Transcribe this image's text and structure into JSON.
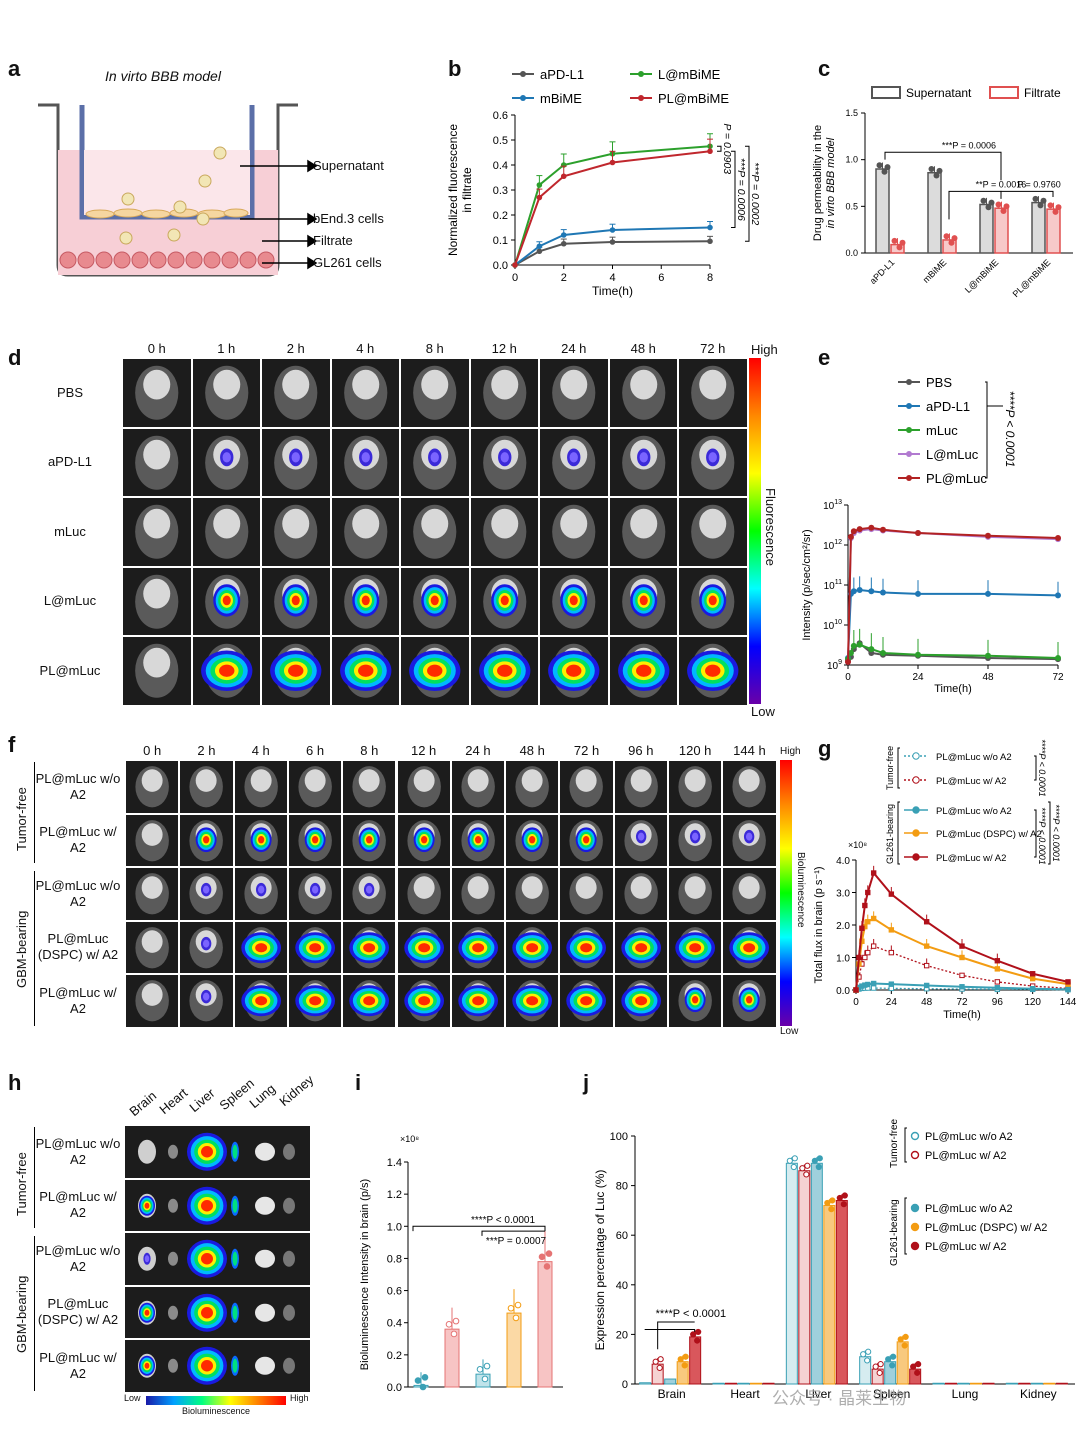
{
  "panels": {
    "a": {
      "letter": "a",
      "title": "In virto BBB model",
      "labels": [
        "Supernatant",
        "bEnd.3 cells",
        "Filtrate",
        "GL261 cells"
      ]
    },
    "b": {
      "letter": "b",
      "legend": [
        "aPD-L1",
        "L@mBiME",
        "mBiME",
        "PL@mBiME"
      ],
      "ylabel": "Normalized fluorescence in filtrate",
      "xlabel": "Time(h)",
      "stats": [
        "P = 0.0903",
        "***P = 0.0006",
        "***P = 0.0002"
      ]
    },
    "c": {
      "letter": "c",
      "legend": [
        "Supernatant",
        "Filtrate"
      ],
      "ylabel": "Drug permeability in the in virto BBB model",
      "stats": [
        "***P = 0.0006",
        "**P = 0.0016",
        "P = 0.9760"
      ]
    },
    "d": {
      "letter": "d",
      "times": [
        "0 h",
        "1 h",
        "2 h",
        "4 h",
        "8 h",
        "12 h",
        "24 h",
        "48 h",
        "72 h"
      ],
      "rows": [
        "PBS",
        "aPD-L1",
        "mLuc",
        "L@mLuc",
        "PL@mLuc"
      ],
      "scale_high": "High",
      "scale_low": "Low",
      "scale_label": "Fluorescence"
    },
    "e": {
      "letter": "e",
      "legend": [
        "PBS",
        "aPD-L1",
        "mLuc",
        "L@mLuc",
        "PL@mLuc"
      ],
      "stat": "****P < 0.0001",
      "ylabel": "Intensity (p/sec/cm²/sr)",
      "xlabel": "Time(h)"
    },
    "f": {
      "letter": "f",
      "times": [
        "0 h",
        "2 h",
        "4 h",
        "6 h",
        "8 h",
        "12 h",
        "24 h",
        "48 h",
        "72 h",
        "96 h",
        "120 h",
        "144 h"
      ],
      "groups": [
        "Tumor-free",
        "GBM-bearing"
      ],
      "rows": [
        "PL@mLuc w/o A2",
        "PL@mLuc w/ A2",
        "PL@mLuc w/o A2",
        "PL@mLuc (DSPC) w/ A2",
        "PL@mLuc w/ A2"
      ],
      "scale_high": "High",
      "scale_low": "Low",
      "scale_label": "Bioluminescence"
    },
    "g": {
      "letter": "g",
      "groups": [
        "Tumor-free",
        "GL261-bearing"
      ],
      "legend": [
        "PL@mLuc w/o A2",
        "PL@mLuc w/ A2",
        "PL@mLuc w/o A2",
        "PL@mLuc (DSPC) w/ A2",
        "PL@mLuc w/ A2"
      ],
      "stats": [
        "****P < 0.0001",
        "****P < 0.0001",
        "****P < 0.0001"
      ],
      "ylabel": "Total flux in brain (p s⁻¹)",
      "xlabel": "Time(h)",
      "multiplier": "×10⁸"
    },
    "h": {
      "letter": "h",
      "organs": [
        "Brain",
        "Heart",
        "Liver",
        "Spleen",
        "Lung",
        "Kidney"
      ],
      "groups": [
        "Tumor-free",
        "GBM-bearing"
      ],
      "rows": [
        "PL@mLuc w/o A2",
        "PL@mLuc w/ A2",
        "PL@mLuc w/o A2",
        "PL@mLuc (DSPC) w/ A2",
        "PL@mLuc w/ A2"
      ],
      "scale_low": "Low",
      "scale_high": "High",
      "scale_label": "Bioluminescence"
    },
    "i": {
      "letter": "i",
      "ylabel": "Bioluminescence Intensity in brain (p/s)",
      "multiplier": "×10⁸",
      "stats": [
        "****P < 0.0001",
        "***P = 0.0007"
      ]
    },
    "j": {
      "letter": "j",
      "ylabel": "Expression percentage of Luc (%)",
      "groups": [
        "Tumor-free",
        "GL261-bearing"
      ],
      "legend": [
        "PL@mLuc w/o A2",
        "PL@mLuc w/ A2",
        "PL@mLuc w/o A2",
        "PL@mLuc (DSPC) w/ A2",
        "PL@mLuc w/ A2"
      ],
      "stat": "****P < 0.0001"
    }
  },
  "watermark": "公众号 · 晶莱生物",
  "colors": {
    "gray": "#555555",
    "blue": "#1f77b4",
    "green": "#2ca02c",
    "red": "#b22222",
    "violet": "#b17ad0",
    "teal": "#3aa0b5",
    "orange": "#f39c12",
    "darkred": "#b0101a",
    "pink": "#e57373"
  },
  "chart_data": [
    {
      "id": "b",
      "type": "line",
      "xlabel": "Time(h)",
      "ylabel": "Normalized fluorescence in filtrate",
      "xlim": [
        0,
        8
      ],
      "ylim": [
        0,
        0.6
      ],
      "xticks": [
        0,
        2,
        4,
        6,
        8
      ],
      "yticks": [
        0.0,
        0.1,
        0.2,
        0.3,
        0.4,
        0.5,
        0.6
      ],
      "x": [
        0,
        1,
        2,
        4,
        8
      ],
      "series": [
        {
          "name": "aPD-L1",
          "color": "#555555",
          "values": [
            0,
            0.055,
            0.085,
            0.092,
            0.095
          ]
        },
        {
          "name": "mBiME",
          "color": "#1f77b4",
          "values": [
            0,
            0.075,
            0.12,
            0.14,
            0.15
          ]
        },
        {
          "name": "L@mBiME",
          "color": "#2ca02c",
          "values": [
            0,
            0.32,
            0.4,
            0.445,
            0.475
          ]
        },
        {
          "name": "PL@mBiME",
          "color": "#c0272d",
          "values": [
            0,
            0.27,
            0.355,
            0.41,
            0.455
          ]
        }
      ]
    },
    {
      "id": "c",
      "type": "bar",
      "ylabel": "Drug permeability in the in virto BBB model",
      "ylim": [
        0,
        1.5
      ],
      "yticks": [
        0.0,
        0.5,
        1.0,
        1.5
      ],
      "categories": [
        "aPD-L1",
        "mBiME",
        "L@mBiME",
        "PL@mBiME"
      ],
      "series": [
        {
          "name": "Supernatant",
          "values": [
            0.9,
            0.86,
            0.52,
            0.54
          ]
        },
        {
          "name": "Filtrate",
          "values": [
            0.09,
            0.14,
            0.48,
            0.47
          ]
        }
      ]
    },
    {
      "id": "e",
      "type": "line",
      "xlabel": "Time(h)",
      "ylabel": "Intensity (p/sec/cm²/sr)",
      "yscale": "log",
      "xlim": [
        0,
        72
      ],
      "ylim": [
        1000000000.0,
        10000000000000.0
      ],
      "xticks": [
        0,
        24,
        48,
        72
      ],
      "x": [
        0,
        1,
        2,
        4,
        8,
        12,
        24,
        48,
        72
      ],
      "series": [
        {
          "name": "PBS",
          "color": "#555555",
          "values": [
            1300000000.0,
            1600000000.0,
            2500000000.0,
            3500000000.0,
            2000000000.0,
            1800000000.0,
            1700000000.0,
            1500000000.0,
            1400000000.0
          ]
        },
        {
          "name": "aPD-L1",
          "color": "#1f77b4",
          "values": [
            1500000000.0,
            60000000000.0,
            70000000000.0,
            75000000000.0,
            70000000000.0,
            65000000000.0,
            60000000000.0,
            60000000000.0,
            55000000000.0
          ]
        },
        {
          "name": "mLuc",
          "color": "#2ca02c",
          "values": [
            1400000000.0,
            2000000000.0,
            3000000000.0,
            3200000000.0,
            2500000000.0,
            2000000000.0,
            1800000000.0,
            1700000000.0,
            1500000000.0
          ]
        },
        {
          "name": "L@mLuc",
          "color": "#b17ad0",
          "values": [
            1200000000.0,
            1500000000000.0,
            2000000000000.0,
            2300000000000.0,
            2500000000000.0,
            2300000000000.0,
            2000000000000.0,
            1600000000000.0,
            1400000000000.0
          ]
        },
        {
          "name": "PL@mLuc",
          "color": "#b22222",
          "values": [
            1200000000.0,
            1600000000000.0,
            2200000000000.0,
            2500000000000.0,
            2700000000000.0,
            2400000000000.0,
            2000000000000.0,
            1700000000000.0,
            1500000000000.0
          ]
        }
      ]
    },
    {
      "id": "g",
      "type": "line",
      "xlabel": "Time(h)",
      "ylabel": "Total flux in brain (p s⁻¹)",
      "multiplier": 100000000.0,
      "xlim": [
        0,
        144
      ],
      "ylim": [
        0,
        4.0
      ],
      "xticks": [
        0,
        24,
        48,
        72,
        96,
        120,
        144
      ],
      "yticks": [
        0.0,
        1.0,
        2.0,
        3.0,
        4.0
      ],
      "x": [
        0,
        2,
        4,
        6,
        8,
        12,
        24,
        48,
        72,
        96,
        120,
        144
      ],
      "series": [
        {
          "name": "PL@mLuc w/o A2",
          "group": "Tumor-free",
          "dashed": true,
          "open": true,
          "color": "#3aa0b5",
          "values": [
            0,
            0.03,
            0.05,
            0.06,
            0.06,
            0.06,
            0.05,
            0.04,
            0.03,
            0.02,
            0.02,
            0.01
          ]
        },
        {
          "name": "PL@mLuc w/ A2",
          "group": "Tumor-free",
          "dashed": true,
          "open": true,
          "color": "#b0101a",
          "values": [
            0,
            0.4,
            0.8,
            1.0,
            1.15,
            1.35,
            1.15,
            0.75,
            0.45,
            0.25,
            0.12,
            0.05
          ]
        },
        {
          "name": "PL@mLuc w/o A2",
          "group": "GL261-bearing",
          "color": "#3aa0b5",
          "values": [
            0,
            0.08,
            0.12,
            0.15,
            0.17,
            0.2,
            0.18,
            0.14,
            0.1,
            0.07,
            0.04,
            0.02
          ]
        },
        {
          "name": "PL@mLuc (DSPC) w/ A2",
          "group": "GL261-bearing",
          "color": "#f39c12",
          "values": [
            0,
            0.8,
            1.5,
            1.95,
            2.1,
            2.2,
            1.85,
            1.35,
            1.0,
            0.65,
            0.35,
            0.18
          ]
        },
        {
          "name": "PL@mLuc w/ A2",
          "group": "GL261-bearing",
          "color": "#b0101a",
          "values": [
            0,
            1.0,
            1.9,
            2.6,
            3.0,
            3.6,
            2.95,
            2.1,
            1.35,
            0.9,
            0.5,
            0.25
          ]
        }
      ]
    },
    {
      "id": "i",
      "type": "bar",
      "ylabel": "Bioluminescence Intensity in brain (p/s)",
      "multiplier": 100000000.0,
      "ylim": [
        0,
        1.4
      ],
      "yticks": [
        0.0,
        0.2,
        0.4,
        0.6,
        0.8,
        1.0,
        1.2,
        1.4
      ],
      "values": [
        0.01,
        0.36,
        0.08,
        0.46,
        0.78
      ],
      "colors": [
        "#3aa0b5",
        "#e57373",
        "#3aa0b5",
        "#f39c12",
        "#e57373"
      ]
    },
    {
      "id": "j",
      "type": "bar",
      "ylabel": "Expression percentage of Luc (%)",
      "ylim": [
        0,
        100
      ],
      "yticks": [
        0,
        20,
        40,
        60,
        80,
        100
      ],
      "categories": [
        "Brain",
        "Heart",
        "Liver",
        "Spleen",
        "Lung",
        "Kidney"
      ],
      "series": [
        {
          "name": "PL@mLuc w/o A2",
          "group": "Tumor-free",
          "values": [
            0.5,
            0.3,
            89,
            11,
            0.3,
            0.3
          ]
        },
        {
          "name": "PL@mLuc w/ A2",
          "group": "Tumor-free",
          "values": [
            8,
            0.3,
            86,
            6,
            0.3,
            0.3
          ]
        },
        {
          "name": "PL@mLuc w/o A2",
          "group": "GL261-bearing",
          "values": [
            2,
            0.3,
            89,
            9,
            0.3,
            0.3
          ]
        },
        {
          "name": "PL@mLuc (DSPC) w/ A2",
          "group": "GL261-bearing",
          "values": [
            9,
            0.3,
            72,
            17,
            0.3,
            0.3
          ]
        },
        {
          "name": "PL@mLuc w/ A2",
          "group": "GL261-bearing",
          "values": [
            19,
            0.3,
            74,
            6,
            0.3,
            0.3
          ]
        }
      ]
    }
  ]
}
